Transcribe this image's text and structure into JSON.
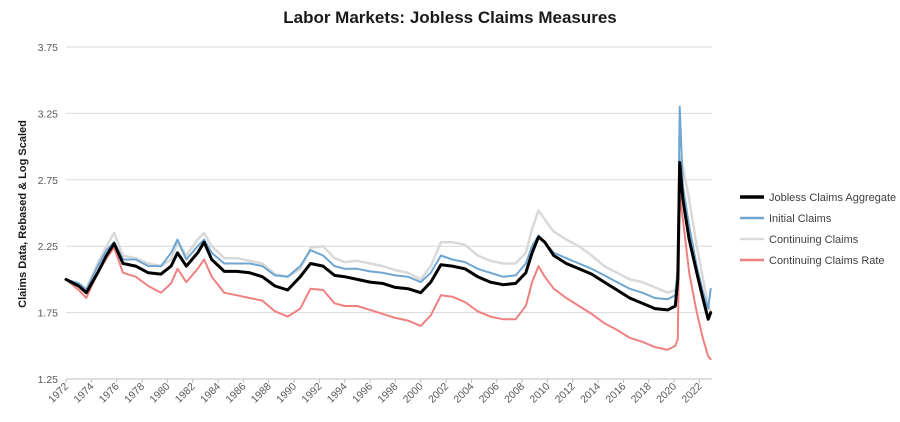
{
  "chart_data": {
    "type": "line",
    "title": "Labor Markets: Jobless Claims Measures",
    "xlabel": "",
    "ylabel": "Claims Data, Rebased & Log Scaled",
    "xlim": [
      1972,
      2023
    ],
    "ylim": [
      1.25,
      3.75
    ],
    "yticks": [
      "1.25",
      "1.75",
      "2.25",
      "2.75",
      "3.25",
      "3.75"
    ],
    "xticks": [
      "1972",
      "1974",
      "1976",
      "1978",
      "1980",
      "1982",
      "1984",
      "1986",
      "1988",
      "1990",
      "1992",
      "1994",
      "1996",
      "1998",
      "2000",
      "2002",
      "2004",
      "2006",
      "2008",
      "2010",
      "2012",
      "2014",
      "2016",
      "2018",
      "2020",
      "2022"
    ],
    "grid": true,
    "legend_position": "right",
    "series": [
      {
        "name": "Jobless Claims Aggregate",
        "color": "#000000",
        "x": [
          1972,
          1973,
          1973.6,
          1974.5,
          1975.2,
          1975.8,
          1976.5,
          1977.5,
          1978.5,
          1979.5,
          1980.3,
          1980.8,
          1981.5,
          1982.4,
          1982.9,
          1983.5,
          1984.5,
          1985.5,
          1986.5,
          1987.5,
          1988.5,
          1989.5,
          1990.5,
          1991.3,
          1992.3,
          1993.2,
          1994,
          1995,
          1996,
          1997,
          1998,
          1999,
          2000,
          2000.8,
          2001.6,
          2002.5,
          2003.5,
          2004.5,
          2005.5,
          2006.5,
          2007.5,
          2008.3,
          2008.8,
          2009.3,
          2009.8,
          2010.5,
          2011.5,
          2012.5,
          2013.5,
          2014.5,
          2015.5,
          2016.5,
          2017.5,
          2018.5,
          2019.5,
          2020.1,
          2020.3,
          2020.45,
          2020.7,
          2021.2,
          2021.8,
          2022.3,
          2022.7,
          2022.9
        ],
        "values": [
          2.0,
          1.95,
          1.9,
          2.05,
          2.18,
          2.27,
          2.12,
          2.1,
          2.05,
          2.04,
          2.1,
          2.2,
          2.1,
          2.2,
          2.28,
          2.15,
          2.06,
          2.06,
          2.05,
          2.02,
          1.95,
          1.92,
          2.02,
          2.12,
          2.1,
          2.03,
          2.02,
          2.0,
          1.98,
          1.97,
          1.94,
          1.93,
          1.9,
          1.98,
          2.11,
          2.1,
          2.08,
          2.02,
          1.98,
          1.96,
          1.97,
          2.05,
          2.2,
          2.32,
          2.28,
          2.18,
          2.12,
          2.08,
          2.04,
          1.98,
          1.92,
          1.86,
          1.82,
          1.78,
          1.77,
          1.8,
          2.0,
          2.88,
          2.6,
          2.3,
          2.05,
          1.85,
          1.7,
          1.75
        ]
      },
      {
        "name": "Initial Claims",
        "color": "#6ea6d1",
        "x": [
          1972,
          1973,
          1973.6,
          1974.5,
          1975.2,
          1975.8,
          1976.5,
          1977.5,
          1978.5,
          1979.5,
          1980.3,
          1980.8,
          1981.5,
          1982.4,
          1982.9,
          1983.5,
          1984.5,
          1985.5,
          1986.5,
          1987.5,
          1988.5,
          1989.5,
          1990.5,
          1991.3,
          1992.3,
          1993.2,
          1994,
          1995,
          1996,
          1997,
          1998,
          1999,
          2000,
          2000.8,
          2001.6,
          2002.5,
          2003.5,
          2004.5,
          2005.5,
          2006.5,
          2007.5,
          2008.3,
          2008.8,
          2009.3,
          2009.8,
          2010.5,
          2011.5,
          2012.5,
          2013.5,
          2014.5,
          2015.5,
          2016.5,
          2017.5,
          2018.5,
          2019.5,
          2020.1,
          2020.3,
          2020.45,
          2020.7,
          2021.2,
          2021.8,
          2022.3,
          2022.7,
          2022.9
        ],
        "values": [
          2.0,
          1.97,
          1.92,
          2.1,
          2.22,
          2.28,
          2.15,
          2.15,
          2.1,
          2.1,
          2.2,
          2.3,
          2.15,
          2.25,
          2.3,
          2.2,
          2.12,
          2.12,
          2.12,
          2.1,
          2.03,
          2.02,
          2.1,
          2.22,
          2.18,
          2.1,
          2.08,
          2.08,
          2.06,
          2.05,
          2.03,
          2.02,
          1.98,
          2.05,
          2.18,
          2.15,
          2.13,
          2.08,
          2.05,
          2.02,
          2.03,
          2.12,
          2.25,
          2.33,
          2.28,
          2.2,
          2.16,
          2.12,
          2.08,
          2.03,
          1.98,
          1.93,
          1.9,
          1.86,
          1.85,
          1.88,
          2.1,
          3.3,
          2.7,
          2.4,
          2.1,
          1.9,
          1.78,
          1.93
        ]
      },
      {
        "name": "Continuing Claims",
        "color": "#d9d9d9",
        "x": [
          1972,
          1973,
          1973.6,
          1974.5,
          1975.2,
          1975.8,
          1976.5,
          1977.5,
          1978.5,
          1979.5,
          1980.3,
          1980.8,
          1981.5,
          1982.4,
          1982.9,
          1983.5,
          1984.5,
          1985.5,
          1986.5,
          1987.5,
          1988.5,
          1989.5,
          1990.5,
          1991.3,
          1992.3,
          1993.2,
          1994,
          1995,
          1996,
          1997,
          1998,
          1999,
          2000,
          2000.8,
          2001.6,
          2002.5,
          2003.5,
          2004.5,
          2005.5,
          2006.5,
          2007.5,
          2008.3,
          2008.8,
          2009.3,
          2009.8,
          2010.5,
          2011.5,
          2012.5,
          2013.5,
          2014.5,
          2015.5,
          2016.5,
          2017.5,
          2018.5,
          2019.5,
          2020.1,
          2020.3,
          2020.45,
          2020.7,
          2021.2,
          2021.8,
          2022.3,
          2022.7,
          2022.9
        ],
        "values": [
          2.0,
          1.97,
          1.93,
          2.12,
          2.25,
          2.35,
          2.18,
          2.16,
          2.12,
          2.1,
          2.15,
          2.28,
          2.18,
          2.3,
          2.35,
          2.25,
          2.16,
          2.16,
          2.14,
          2.12,
          2.04,
          2.02,
          2.08,
          2.24,
          2.25,
          2.16,
          2.13,
          2.14,
          2.12,
          2.1,
          2.07,
          2.05,
          2.0,
          2.1,
          2.28,
          2.28,
          2.26,
          2.18,
          2.14,
          2.12,
          2.12,
          2.2,
          2.38,
          2.52,
          2.45,
          2.36,
          2.3,
          2.25,
          2.18,
          2.1,
          2.05,
          2.0,
          1.98,
          1.94,
          1.9,
          1.92,
          1.98,
          2.92,
          2.85,
          2.6,
          2.25,
          2.0,
          1.8,
          1.76
        ]
      },
      {
        "name": "Continuing Claims Rate",
        "color": "#f08080",
        "x": [
          1972,
          1973,
          1973.6,
          1974.5,
          1975.2,
          1975.8,
          1976.5,
          1977.5,
          1978.5,
          1979.5,
          1980.3,
          1980.8,
          1981.5,
          1982.4,
          1982.9,
          1983.5,
          1984.5,
          1985.5,
          1986.5,
          1987.5,
          1988.5,
          1989.5,
          1990.5,
          1991.3,
          1992.3,
          1993.2,
          1994,
          1995,
          1996,
          1997,
          1998,
          1999,
          2000,
          2000.8,
          2001.6,
          2002.5,
          2003.5,
          2004.5,
          2005.5,
          2006.5,
          2007.5,
          2008.3,
          2008.8,
          2009.3,
          2009.8,
          2010.5,
          2011.5,
          2012.5,
          2013.5,
          2014.5,
          2015.5,
          2016.5,
          2017.5,
          2018.5,
          2019.5,
          2020.1,
          2020.3,
          2020.45,
          2020.7,
          2021.2,
          2021.8,
          2022.3,
          2022.7,
          2022.9
        ],
        "values": [
          2.0,
          1.92,
          1.86,
          2.05,
          2.16,
          2.24,
          2.05,
          2.02,
          1.95,
          1.9,
          1.97,
          2.08,
          1.98,
          2.08,
          2.15,
          2.02,
          1.9,
          1.88,
          1.86,
          1.84,
          1.76,
          1.72,
          1.78,
          1.93,
          1.92,
          1.82,
          1.8,
          1.8,
          1.77,
          1.74,
          1.71,
          1.69,
          1.65,
          1.73,
          1.88,
          1.87,
          1.83,
          1.76,
          1.72,
          1.7,
          1.7,
          1.8,
          1.98,
          2.1,
          2.02,
          1.93,
          1.86,
          1.8,
          1.74,
          1.67,
          1.62,
          1.56,
          1.53,
          1.49,
          1.47,
          1.5,
          1.55,
          2.63,
          2.45,
          2.05,
          1.75,
          1.55,
          1.42,
          1.4
        ]
      }
    ]
  }
}
